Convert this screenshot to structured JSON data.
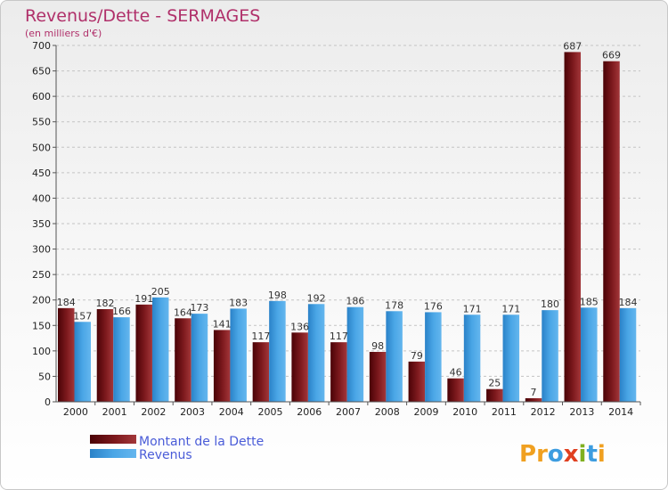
{
  "chart_data": {
    "type": "bar",
    "title": "Revenus/Dette - SERMAGES",
    "subtitle": "(en milliers d'€)",
    "xlabel": "",
    "ylabel": "",
    "ylim": [
      0,
      700
    ],
    "yticks": [
      0,
      50,
      100,
      150,
      200,
      250,
      300,
      350,
      400,
      450,
      500,
      550,
      600,
      650,
      700
    ],
    "grid": true,
    "legend_position": "bottom-left",
    "categories": [
      "2000",
      "2001",
      "2002",
      "2003",
      "2004",
      "2005",
      "2006",
      "2007",
      "2008",
      "2009",
      "2010",
      "2011",
      "2012",
      "2013",
      "2014"
    ],
    "series": [
      {
        "name": "Montant de la Dette",
        "color": "#7a0f14",
        "values": [
          184,
          182,
          191,
          164,
          141,
          117,
          136,
          117,
          98,
          79,
          46,
          25,
          7,
          687,
          669
        ]
      },
      {
        "name": "Revenus",
        "color": "#3d9de0",
        "values": [
          157,
          166,
          205,
          173,
          183,
          198,
          192,
          186,
          178,
          176,
          171,
          171,
          180,
          185,
          184
        ]
      }
    ]
  },
  "logo": {
    "letters": [
      "P",
      "r",
      "o",
      "x",
      "i",
      "t",
      "i"
    ],
    "colors": [
      "#f0a020",
      "#f0a020",
      "#3d9de0",
      "#e04020",
      "#80b020",
      "#3d9de0",
      "#f0a020"
    ]
  }
}
